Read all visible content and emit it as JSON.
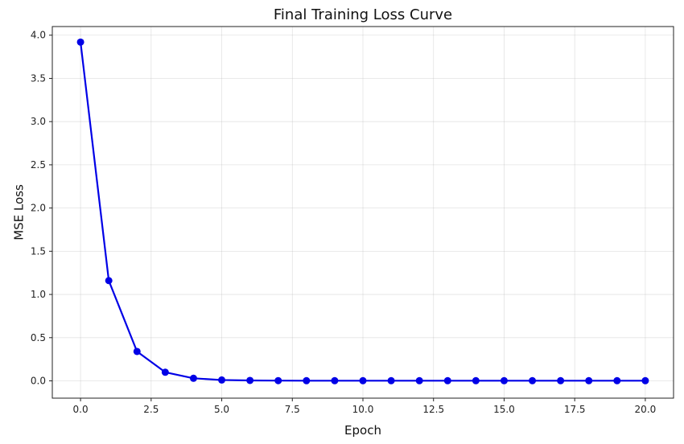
{
  "chart_data": {
    "type": "line",
    "title": "Final Training Loss Curve",
    "xlabel": "Epoch",
    "ylabel": "MSE Loss",
    "xlim": [
      -1.0,
      21.0
    ],
    "ylim": [
      -0.2,
      4.1
    ],
    "x_ticks": [
      0.0,
      2.5,
      5.0,
      7.5,
      10.0,
      12.5,
      15.0,
      17.5,
      20.0
    ],
    "x_tick_labels": [
      "0.0",
      "2.5",
      "5.0",
      "7.5",
      "10.0",
      "12.5",
      "15.0",
      "17.5",
      "20.0"
    ],
    "y_ticks": [
      0.0,
      0.5,
      1.0,
      1.5,
      2.0,
      2.5,
      3.0,
      3.5,
      4.0
    ],
    "y_tick_labels": [
      "0.0",
      "0.5",
      "1.0",
      "1.5",
      "2.0",
      "2.5",
      "3.0",
      "3.5",
      "4.0"
    ],
    "grid": true,
    "color": "#0000e6",
    "series": [
      {
        "x": [
          0,
          1,
          2,
          3,
          4,
          5,
          6,
          7,
          8,
          9,
          10,
          11,
          12,
          13,
          14,
          15,
          16,
          17,
          18,
          19,
          20
        ],
        "values": [
          3.92,
          1.16,
          0.34,
          0.1,
          0.03,
          0.01,
          0.005,
          0.003,
          0.002,
          0.002,
          0.002,
          0.002,
          0.002,
          0.002,
          0.002,
          0.002,
          0.002,
          0.002,
          0.002,
          0.002,
          0.002
        ]
      }
    ]
  }
}
